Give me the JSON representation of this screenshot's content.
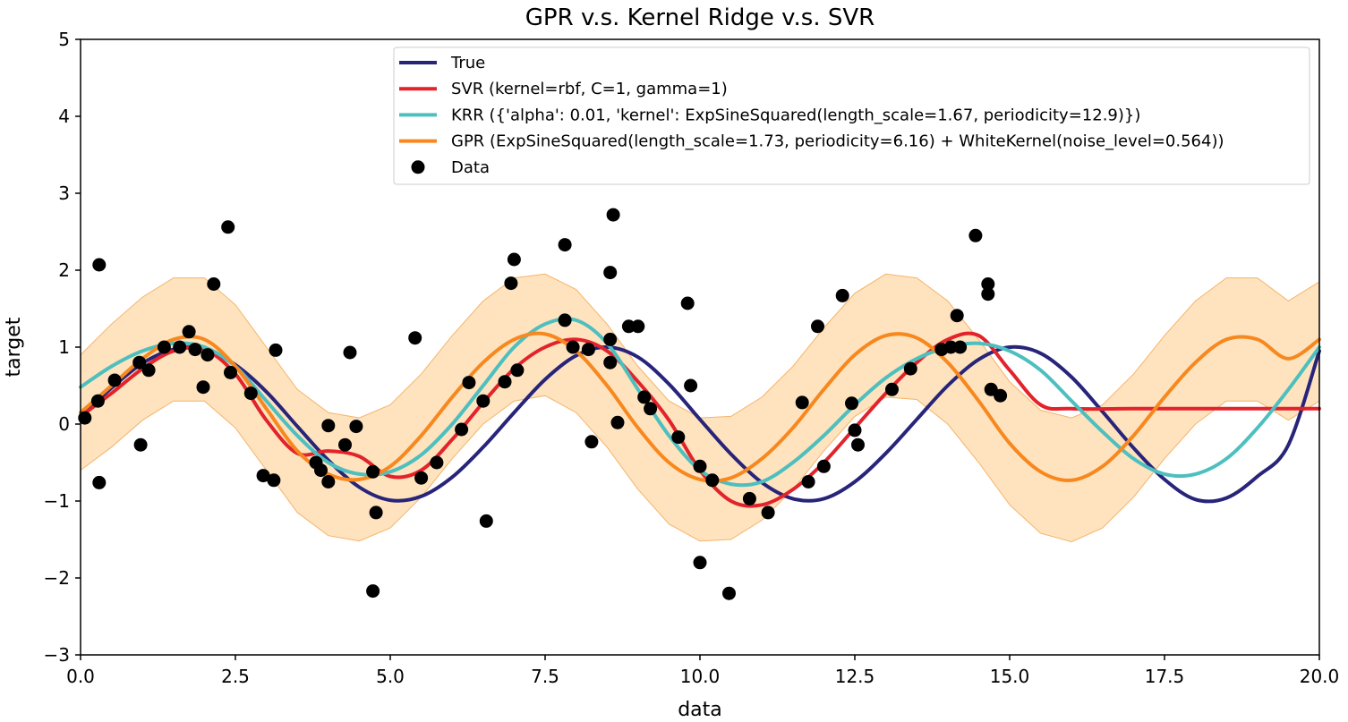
{
  "chart_data": {
    "type": "line",
    "title": "GPR v.s. Kernel Ridge v.s. SVR",
    "xlabel": "data",
    "ylabel": "target",
    "xlim": [
      0,
      20
    ],
    "ylim": [
      -3,
      5
    ],
    "xticks": [
      0,
      2.5,
      5,
      7.5,
      10,
      12.5,
      15,
      17.5,
      20
    ],
    "xtick_labels": [
      "0.0",
      "2.5",
      "5.0",
      "7.5",
      "10.0",
      "12.5",
      "15.0",
      "17.5",
      "20.0"
    ],
    "yticks": [
      -3,
      -2,
      -1,
      0,
      1,
      2,
      3,
      4,
      5
    ],
    "ytick_labels": [
      "−3",
      "−2",
      "−1",
      "0",
      "1",
      "2",
      "3",
      "4",
      "5"
    ],
    "grid": false,
    "legend_position": "top-right",
    "series": [
      {
        "name": "True",
        "color": "#27247a",
        "x": [
          0,
          0.5,
          1,
          1.5,
          2,
          2.5,
          3,
          3.5,
          4,
          4.5,
          5,
          5.5,
          6,
          6.5,
          7,
          7.5,
          8,
          8.5,
          9,
          9.5,
          10,
          10.5,
          11,
          11.5,
          12,
          12.5,
          13,
          13.5,
          14,
          14.5,
          15,
          15.5,
          16,
          16.5,
          17,
          17.5,
          18,
          18.5,
          19,
          19.5,
          20
        ],
        "y": [
          0.1,
          0.47,
          0.79,
          0.97,
          0.98,
          0.77,
          0.42,
          -0.03,
          -0.47,
          -0.82,
          -0.99,
          -0.94,
          -0.69,
          -0.3,
          0.15,
          0.58,
          0.89,
          1.0,
          0.87,
          0.52,
          0.06,
          -0.39,
          -0.76,
          -0.97,
          -0.97,
          -0.75,
          -0.38,
          0.06,
          0.5,
          0.84,
          1.0,
          0.92,
          0.61,
          0.16,
          -0.31,
          -0.72,
          -0.98,
          -0.96,
          -0.68,
          -0.27,
          0.95
        ]
      },
      {
        "name": "SVR (kernel=rbf, C=1, gamma=1)",
        "color": "#e2232b",
        "x": [
          0,
          0.5,
          1,
          1.5,
          2,
          2.5,
          3,
          3.5,
          4,
          4.5,
          5,
          5.5,
          6,
          6.5,
          7,
          7.5,
          8,
          8.5,
          9,
          9.5,
          10,
          10.5,
          11,
          11.5,
          12,
          12.5,
          13,
          13.5,
          14,
          14.5,
          15,
          15.5,
          16,
          17,
          18,
          19,
          20
        ],
        "y": [
          0.1,
          0.4,
          0.72,
          0.95,
          0.97,
          0.65,
          0.05,
          -0.38,
          -0.35,
          -0.42,
          -0.68,
          -0.6,
          -0.2,
          0.28,
          0.72,
          1.0,
          1.1,
          0.95,
          0.55,
          0.05,
          -0.6,
          -1.0,
          -1.05,
          -0.85,
          -0.5,
          -0.05,
          0.4,
          0.8,
          1.1,
          1.15,
          0.7,
          0.25,
          0.2,
          0.2,
          0.2,
          0.2,
          0.2
        ]
      },
      {
        "name": "KRR ({'alpha': 0.01, 'kernel': ExpSineSquared(length_scale=1.67, periodicity=12.9)})",
        "color": "#4dbfbf",
        "x": [
          0,
          0.5,
          1,
          1.5,
          2,
          2.5,
          3,
          3.5,
          4,
          4.5,
          5,
          5.5,
          6,
          6.5,
          7,
          7.5,
          8,
          8.5,
          9,
          9.5,
          10,
          10.5,
          11,
          11.5,
          12,
          12.5,
          13,
          13.5,
          14,
          14.5,
          15,
          15.5,
          16,
          16.5,
          17,
          17.5,
          18,
          18.5,
          19,
          19.5,
          20
        ],
        "y": [
          0.48,
          0.75,
          0.95,
          1.05,
          1.0,
          0.75,
          0.3,
          -0.15,
          -0.5,
          -0.65,
          -0.62,
          -0.4,
          0.0,
          0.5,
          1.0,
          1.3,
          1.35,
          1.05,
          0.45,
          -0.15,
          -0.6,
          -0.78,
          -0.75,
          -0.5,
          -0.15,
          0.25,
          0.6,
          0.85,
          1.0,
          1.05,
          0.95,
          0.7,
          0.3,
          -0.1,
          -0.45,
          -0.65,
          -0.65,
          -0.45,
          -0.05,
          0.45,
          1.0
        ]
      },
      {
        "name": "GPR (ExpSineSquared(length_scale=1.73, periodicity=6.16) + WhiteKernel(noise_level=0.564))",
        "color": "#f7881f",
        "x": [
          0,
          0.5,
          1,
          1.5,
          2,
          2.5,
          3,
          3.5,
          4,
          4.5,
          5,
          5.5,
          6,
          6.5,
          7,
          7.5,
          8,
          8.5,
          9,
          9.5,
          10,
          10.5,
          11,
          11.5,
          12,
          12.5,
          13,
          13.5,
          14,
          14.5,
          15,
          15.5,
          16,
          16.5,
          17,
          17.5,
          18,
          18.5,
          19,
          19.5,
          20
        ],
        "y": [
          0.15,
          0.5,
          0.85,
          1.1,
          1.1,
          0.75,
          0.2,
          -0.35,
          -0.65,
          -0.72,
          -0.55,
          -0.15,
          0.35,
          0.8,
          1.1,
          1.17,
          0.95,
          0.5,
          -0.05,
          -0.5,
          -0.72,
          -0.7,
          -0.45,
          -0.05,
          0.45,
          0.9,
          1.15,
          1.12,
          0.8,
          0.3,
          -0.25,
          -0.62,
          -0.73,
          -0.55,
          -0.15,
          0.35,
          0.8,
          1.1,
          1.1,
          0.85,
          1.1
        ]
      }
    ],
    "band": {
      "color": "#fdd9a8",
      "x": [
        0,
        0.5,
        1,
        1.5,
        2,
        2.5,
        3,
        3.5,
        4,
        4.5,
        5,
        5.5,
        6,
        6.5,
        7,
        7.5,
        8,
        8.5,
        9,
        9.5,
        10,
        10.5,
        11,
        11.5,
        12,
        12.5,
        13,
        13.5,
        14,
        14.5,
        15,
        15.5,
        16,
        16.5,
        17,
        17.5,
        18,
        18.5,
        19,
        19.5,
        20
      ],
      "upper": [
        0.9,
        1.3,
        1.65,
        1.9,
        1.9,
        1.55,
        1.0,
        0.45,
        0.15,
        0.08,
        0.25,
        0.65,
        1.15,
        1.6,
        1.9,
        1.95,
        1.75,
        1.3,
        0.75,
        0.3,
        0.08,
        0.1,
        0.35,
        0.75,
        1.25,
        1.7,
        1.95,
        1.9,
        1.6,
        1.1,
        0.55,
        0.18,
        0.08,
        0.25,
        0.65,
        1.15,
        1.6,
        1.9,
        1.9,
        1.6,
        1.85
      ],
      "lower": [
        -0.6,
        -0.3,
        0.05,
        0.3,
        0.3,
        -0.05,
        -0.6,
        -1.15,
        -1.45,
        -1.52,
        -1.35,
        -0.95,
        -0.45,
        0.0,
        0.3,
        0.37,
        0.15,
        -0.3,
        -0.85,
        -1.3,
        -1.52,
        -1.5,
        -1.25,
        -0.85,
        -0.35,
        0.1,
        0.35,
        0.32,
        0.0,
        -0.5,
        -1.05,
        -1.42,
        -1.53,
        -1.35,
        -0.95,
        -0.45,
        0.0,
        0.3,
        0.3,
        0.05,
        0.3
      ]
    },
    "scatter": {
      "name": "Data",
      "color": "#000000",
      "points": [
        [
          0.07,
          0.08
        ],
        [
          0.28,
          0.3
        ],
        [
          0.3,
          -0.76
        ],
        [
          0.3,
          2.07
        ],
        [
          0.55,
          0.57
        ],
        [
          0.95,
          0.8
        ],
        [
          0.97,
          -0.27
        ],
        [
          1.1,
          0.7
        ],
        [
          1.35,
          1.0
        ],
        [
          1.6,
          1.0
        ],
        [
          1.75,
          1.2
        ],
        [
          1.85,
          0.97
        ],
        [
          1.98,
          0.48
        ],
        [
          2.05,
          0.9
        ],
        [
          2.15,
          1.82
        ],
        [
          2.38,
          2.56
        ],
        [
          2.42,
          0.67
        ],
        [
          2.75,
          0.4
        ],
        [
          2.95,
          -0.67
        ],
        [
          3.12,
          -0.73
        ],
        [
          3.15,
          0.96
        ],
        [
          3.8,
          -0.5
        ],
        [
          3.88,
          -0.6
        ],
        [
          4.0,
          -0.75
        ],
        [
          4.0,
          -0.02
        ],
        [
          4.27,
          -0.27
        ],
        [
          4.35,
          0.93
        ],
        [
          4.45,
          -0.03
        ],
        [
          4.72,
          -0.62
        ],
        [
          4.72,
          -2.17
        ],
        [
          4.77,
          -1.15
        ],
        [
          5.4,
          1.12
        ],
        [
          5.5,
          -0.7
        ],
        [
          5.75,
          -0.5
        ],
        [
          6.15,
          -0.07
        ],
        [
          6.27,
          0.54
        ],
        [
          6.5,
          0.3
        ],
        [
          6.55,
          -1.26
        ],
        [
          6.85,
          0.55
        ],
        [
          6.95,
          1.83
        ],
        [
          7.0,
          2.14
        ],
        [
          7.05,
          0.7
        ],
        [
          7.82,
          2.33
        ],
        [
          7.82,
          1.35
        ],
        [
          7.95,
          1.0
        ],
        [
          8.2,
          0.97
        ],
        [
          8.25,
          -0.23
        ],
        [
          8.55,
          1.1
        ],
        [
          8.55,
          0.8
        ],
        [
          8.55,
          1.97
        ],
        [
          8.6,
          2.72
        ],
        [
          8.67,
          0.02
        ],
        [
          8.85,
          1.27
        ],
        [
          9.0,
          1.27
        ],
        [
          9.1,
          0.35
        ],
        [
          9.2,
          0.2
        ],
        [
          9.65,
          -0.17
        ],
        [
          9.8,
          1.57
        ],
        [
          9.85,
          0.5
        ],
        [
          10.0,
          -1.8
        ],
        [
          10.0,
          -0.55
        ],
        [
          10.2,
          -0.73
        ],
        [
          10.47,
          -2.2
        ],
        [
          10.8,
          -0.97
        ],
        [
          11.1,
          -1.15
        ],
        [
          11.65,
          0.28
        ],
        [
          11.75,
          -0.75
        ],
        [
          11.9,
          1.27
        ],
        [
          12.0,
          -0.55
        ],
        [
          12.3,
          1.67
        ],
        [
          12.45,
          0.27
        ],
        [
          12.5,
          -0.08
        ],
        [
          12.55,
          -0.27
        ],
        [
          13.1,
          0.45
        ],
        [
          13.4,
          0.72
        ],
        [
          13.9,
          0.97
        ],
        [
          14.05,
          1.0
        ],
        [
          14.15,
          1.41
        ],
        [
          14.2,
          1.0
        ],
        [
          14.45,
          2.45
        ],
        [
          14.65,
          1.82
        ],
        [
          14.65,
          1.69
        ],
        [
          14.7,
          0.45
        ],
        [
          14.85,
          0.37
        ]
      ]
    }
  }
}
